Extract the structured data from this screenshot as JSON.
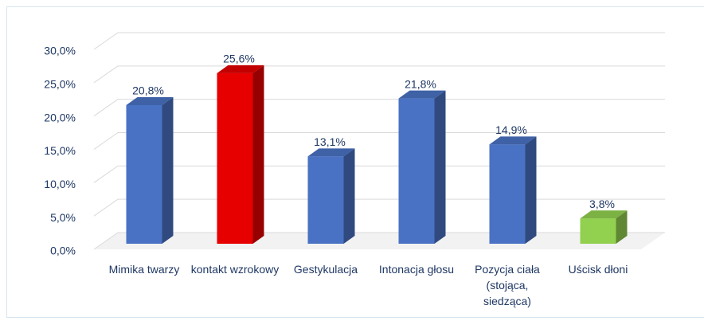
{
  "chart_data": {
    "type": "bar3d",
    "categories": [
      "Mimika twarzy",
      "kontakt wzrokowy",
      "Gestykulacja",
      "Intonacja głosu",
      "Pozycja ciała (stojąca, siedząca)",
      "Uścisk dłoni"
    ],
    "values": [
      20.8,
      25.6,
      13.1,
      21.8,
      14.9,
      3.8
    ],
    "value_labels": [
      "20,8%",
      "25,6%",
      "13,1%",
      "21,8%",
      "14,9%",
      "3,8%"
    ],
    "colors": [
      "#4a72c4",
      "#e60000",
      "#4a72c4",
      "#4a72c4",
      "#4a72c4",
      "#92d050"
    ],
    "ylim": [
      0,
      30
    ],
    "yticks": [
      {
        "value": 0,
        "label": "0,0%"
      },
      {
        "value": 5,
        "label": "5,0%"
      },
      {
        "value": 10,
        "label": "10,0%"
      },
      {
        "value": 15,
        "label": "15,0%"
      },
      {
        "value": 20,
        "label": "20,0%"
      },
      {
        "value": 25,
        "label": "25,0%"
      },
      {
        "value": 30,
        "label": "30,0%"
      }
    ],
    "grid": true
  }
}
